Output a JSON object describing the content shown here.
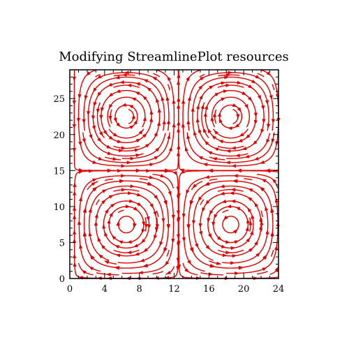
{
  "chart_data": {
    "type": "streamline",
    "title": "Modifying StreamlinePlot resources",
    "xlabel": "",
    "ylabel": "",
    "xlim": [
      0,
      24
    ],
    "ylim": [
      0,
      29
    ],
    "x_ticks": [
      0,
      4,
      8,
      12,
      16,
      20,
      24
    ],
    "y_ticks": [
      0,
      5,
      10,
      15,
      20,
      25
    ],
    "x_tick_labels": [
      "0",
      "4",
      "8",
      "12",
      "16",
      "20",
      "24"
    ],
    "y_tick_labels": [
      "0",
      "5",
      "10",
      "15",
      "20",
      "25"
    ],
    "grid": false,
    "line_color": "#e00000",
    "centers": [
      {
        "x": 6.5,
        "y": 22.5,
        "direction": "counterclockwise"
      },
      {
        "x": 18.5,
        "y": 7.5,
        "direction": "counterclockwise"
      }
    ],
    "saddles": [
      {
        "x": 6.5,
        "y": 7.5
      },
      {
        "x": 18.5,
        "y": 22.5
      }
    ],
    "field_period": {
      "x": 24,
      "y": 30
    }
  }
}
